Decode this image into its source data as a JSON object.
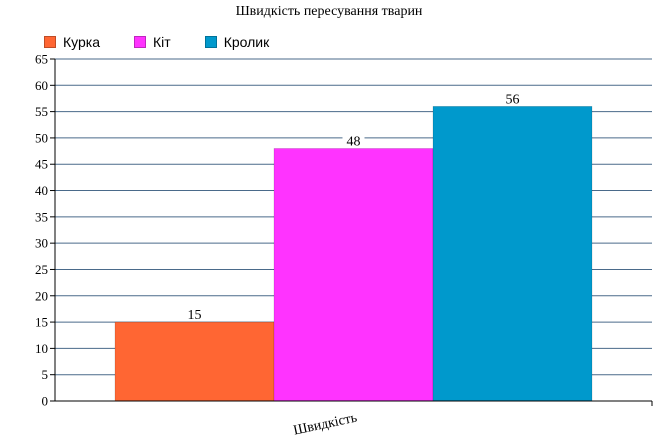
{
  "chart_data": {
    "type": "bar",
    "title": "Швидкість пересування тварин",
    "categories": [
      "Швидкість"
    ],
    "series": [
      {
        "name": "Курка",
        "values": [
          15
        ],
        "color": "#ff6633"
      },
      {
        "name": "Кіт",
        "values": [
          48
        ],
        "color": "#ff33ff"
      },
      {
        "name": "Кролик",
        "values": [
          56
        ],
        "color": "#0099cc"
      }
    ],
    "ylim": [
      0,
      65
    ],
    "yticks": [
      0,
      5,
      10,
      15,
      20,
      25,
      30,
      35,
      40,
      45,
      50,
      55,
      60,
      65
    ],
    "grid": true,
    "legend_position": "top-left",
    "data_labels": true
  }
}
